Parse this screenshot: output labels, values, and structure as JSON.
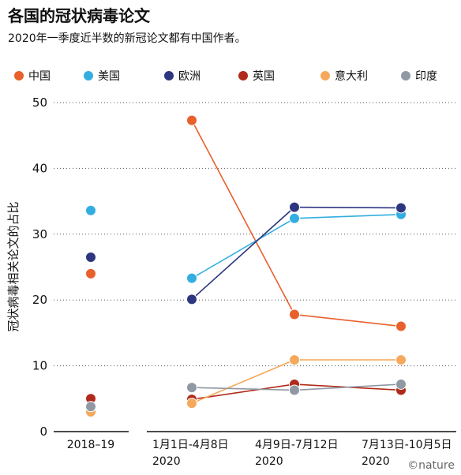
{
  "header": {
    "title": "各国的冠状病毒论文",
    "subtitle": "2020年一季度近半数的新冠论文都有中国作者。"
  },
  "credit": "©nature",
  "chart_data": {
    "type": "scatter",
    "ylabel": "冠状病毒相关论文的占比",
    "ylim": [
      0,
      50
    ],
    "yticks": [
      0,
      10,
      20,
      30,
      40,
      50
    ],
    "grid": "horizontal-dotted",
    "legend_position": "top",
    "baseline": {
      "category": "2018–19",
      "values": [
        {
          "country": "中国",
          "value": 24
        },
        {
          "country": "美国",
          "value": 33.6
        },
        {
          "country": "欧洲",
          "value": 26.5
        },
        {
          "country": "英国",
          "value": 5
        },
        {
          "country": "意大利",
          "value": 3
        },
        {
          "country": "印度",
          "value": 3.8
        }
      ]
    },
    "periods": [
      {
        "line1": "1月1日-4月8日",
        "line2": "2020"
      },
      {
        "line1": "4月9日-7月12日",
        "line2": "2020"
      },
      {
        "line1": "7月13日-10月5日",
        "line2": "2020"
      }
    ],
    "series": [
      {
        "name": "中国",
        "color": "#e8602c",
        "values": [
          47.3,
          17.8,
          16
        ]
      },
      {
        "name": "美国",
        "color": "#33aee0",
        "values": [
          23.3,
          32.4,
          33
        ]
      },
      {
        "name": "欧洲",
        "color": "#2e3680",
        "values": [
          20.1,
          34.1,
          34
        ]
      },
      {
        "name": "英国",
        "color": "#b02a1a",
        "values": [
          4.9,
          7.2,
          6.3
        ]
      },
      {
        "name": "意大利",
        "color": "#f5a95c",
        "values": [
          4.3,
          10.9,
          10.9
        ]
      },
      {
        "name": "印度",
        "color": "#8f98a3",
        "values": [
          6.7,
          6.3,
          7.2
        ]
      }
    ]
  }
}
